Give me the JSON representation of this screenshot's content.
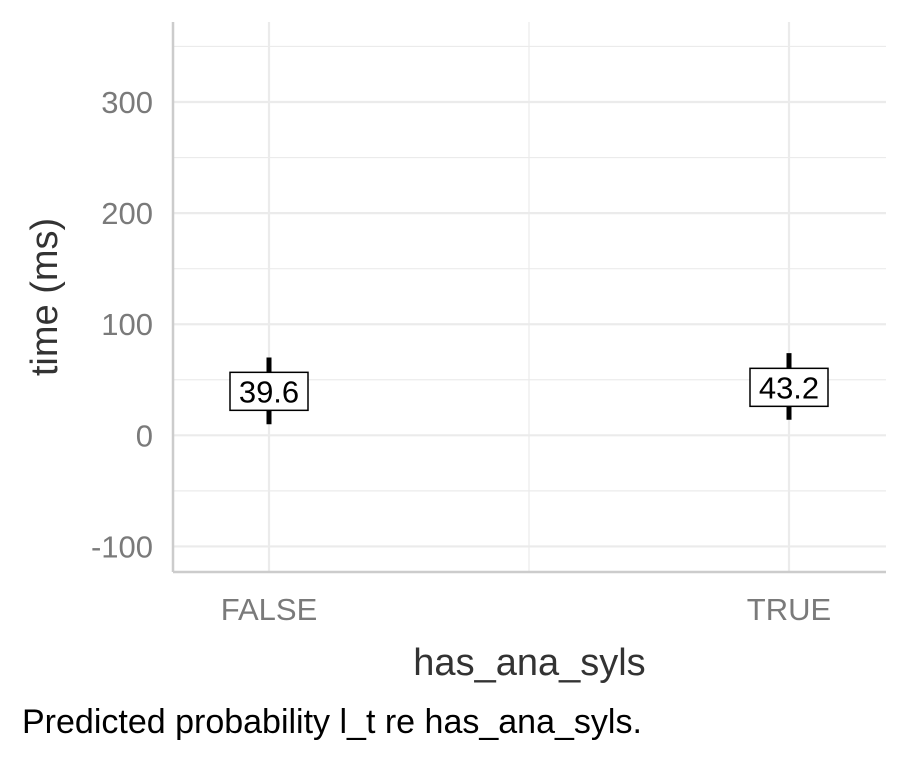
{
  "chart_data": {
    "type": "scatter",
    "categories": [
      "FALSE",
      "TRUE"
    ],
    "points": [
      {
        "x": "FALSE",
        "y": 39.6,
        "lower": 10,
        "upper": 70,
        "label": "39.6"
      },
      {
        "x": "TRUE",
        "y": 43.2,
        "lower": 14,
        "upper": 74,
        "label": "43.2"
      }
    ],
    "xlabel": "has_ana_syls",
    "ylabel": "time (ms)",
    "ylim": [
      -123,
      372
    ],
    "yticks": [
      -100,
      0,
      100,
      200,
      300
    ],
    "yticklabels": [
      "-100",
      "0",
      "100",
      "200",
      "300"
    ],
    "grid": true,
    "caption": "Predicted probability l_t re has_ana_syls.",
    "colors": {
      "grid": "#ebebeb",
      "axis": "#cccccc",
      "ticks": "#7a7a7a",
      "marks": "#000000"
    }
  }
}
